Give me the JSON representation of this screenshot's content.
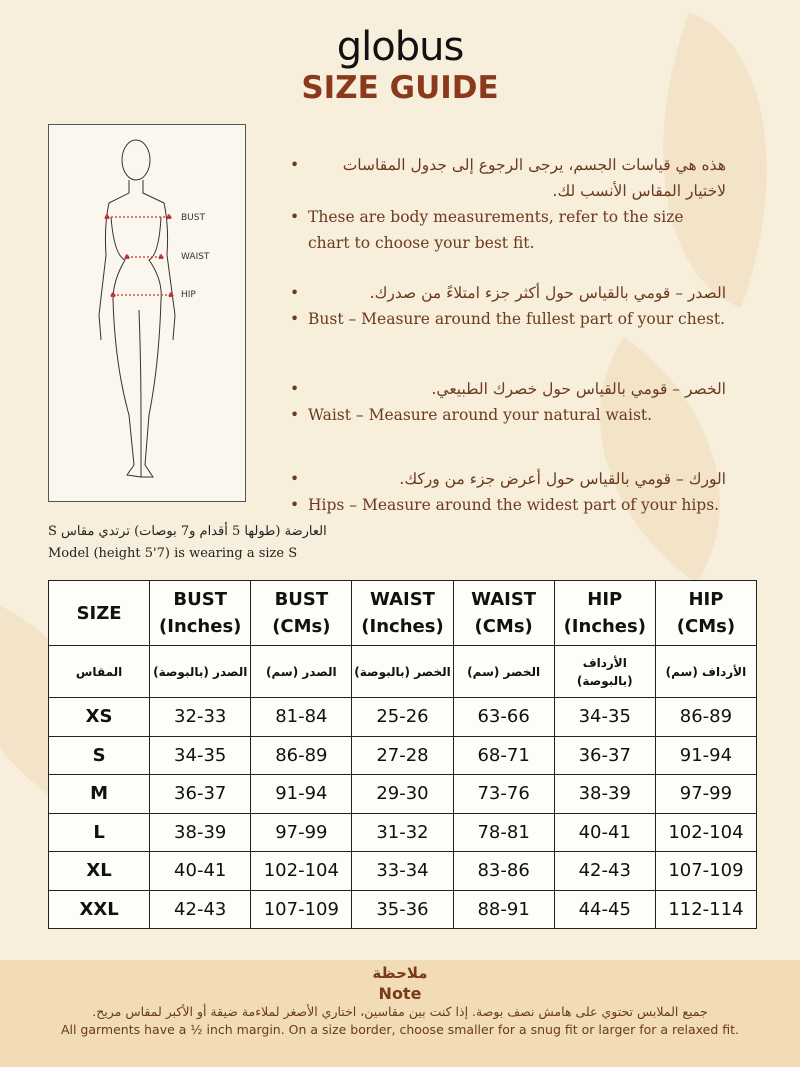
{
  "brand": {
    "logo": "globus",
    "title": "SIZE GUIDE"
  },
  "figure": {
    "labels": [
      "BUST",
      "WAIST",
      "HIP"
    ]
  },
  "bullets": [
    {
      "ar": "هذه هي قياسات الجسم، يرجى الرجوع إلى جدول المقاسات لاختيار المقاس الأنسب لك.",
      "en": "These are body measurements, refer to the size chart to choose your best fit."
    },
    {
      "ar": "الصدر – قومي بالقياس حول أكثر جزء امتلاءً من صدرك.",
      "en": "Bust – Measure around the fullest part of your chest."
    },
    {
      "ar": "الخصر – قومي بالقياس حول خصرك الطبيعي.",
      "en": "Waist – Measure around your natural waist."
    },
    {
      "ar": "الورك – قومي بالقياس حول أعرض جزء من وركك.",
      "en": "Hips – Measure around the widest part of your hips."
    }
  ],
  "model": {
    "ar": "العارضة (طولها 5 أقدام و7 بوصات) ترتدي مقاس S",
    "en": "Model (height 5'7) is wearing a size S"
  },
  "table": {
    "headers": [
      [
        "SIZE",
        ""
      ],
      [
        "BUST",
        "(Inches)"
      ],
      [
        "BUST",
        "(CMs)"
      ],
      [
        "WAIST",
        "(Inches)"
      ],
      [
        "WAIST",
        "(CMs)"
      ],
      [
        "HIP",
        "(Inches)"
      ],
      [
        "HIP",
        "(CMs)"
      ]
    ],
    "headers_ar": [
      "المقاس",
      "الصدر (بالبوصة)",
      "الصدر (سم)",
      "الخصر (بالبوصة)",
      "الخصر (سم)",
      "الأرداف (بالبوصة)",
      "الأرداف (سم)"
    ],
    "rows": [
      [
        "XS",
        "32-33",
        "81-84",
        "25-26",
        "63-66",
        "34-35",
        "86-89"
      ],
      [
        "S",
        "34-35",
        "86-89",
        "27-28",
        "68-71",
        "36-37",
        "91-94"
      ],
      [
        "M",
        "36-37",
        "91-94",
        "29-30",
        "73-76",
        "38-39",
        "97-99"
      ],
      [
        "L",
        "38-39",
        "97-99",
        "31-32",
        "78-81",
        "40-41",
        "102-104"
      ],
      [
        "XL",
        "40-41",
        "102-104",
        "33-34",
        "83-86",
        "42-43",
        "107-109"
      ],
      [
        "XXL",
        "42-43",
        "107-109",
        "35-36",
        "88-91",
        "44-45",
        "112-114"
      ]
    ]
  },
  "note": {
    "title_ar": "ملاحظة",
    "title_en": "Note",
    "text_ar": "جميع الملابس تحتوي على هامش نصف بوصة. إذا كنت بين مقاسين، اختاري الأصغر لملاءمة ضيقة أو الأكبر لمقاس مريح.",
    "text_en": "All garments have a ½ inch margin. On a size border, choose smaller for a snug fit or larger for a relaxed fit."
  },
  "colors": {
    "background": "#f8eedc",
    "accent": "#8a3a1c",
    "note_band": "#f1dcb5"
  }
}
